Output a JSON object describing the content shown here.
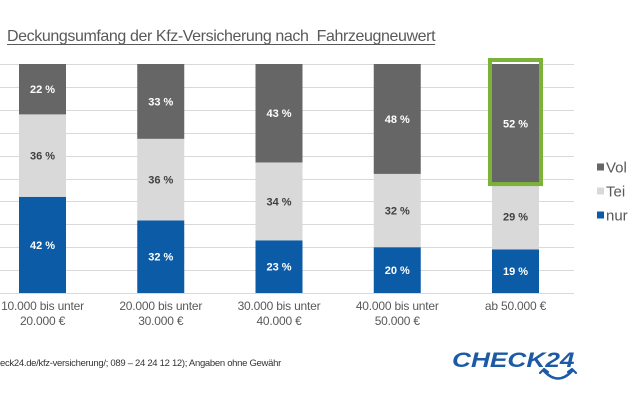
{
  "chart_data": {
    "type": "bar",
    "stacked": true,
    "normalized_percent": true,
    "title": "Deckungsumfang der Kfz-Versicherung nach  Fahrzeugneuwert",
    "xlabel": "",
    "ylabel": "",
    "ylim": [
      0,
      100
    ],
    "grid": true,
    "grid_step": 10,
    "legend_position": "right",
    "categories": [
      [
        "10.000 bis unter",
        "20.000 €"
      ],
      [
        "20.000 bis unter",
        "30.000 €"
      ],
      [
        "30.000 bis unter",
        "40.000 €"
      ],
      [
        "40.000 bis unter",
        "50.000 €"
      ],
      [
        "ab 50.000 €"
      ]
    ],
    "series": [
      {
        "name": "nur",
        "color": "#0b5ba7",
        "label_color": "#ffffff",
        "values": [
          42,
          32,
          23,
          20,
          19
        ]
      },
      {
        "name": "Tei",
        "color": "#d9d9d9",
        "label_color": "#404040",
        "values": [
          36,
          36,
          34,
          32,
          29
        ]
      },
      {
        "name": "Vol",
        "color": "#666666",
        "label_color": "#ffffff",
        "values": [
          22,
          33,
          43,
          48,
          52
        ]
      }
    ],
    "legend": [
      "Vol",
      "Tei",
      "nur"
    ],
    "label_suffix": " %",
    "highlight": {
      "category_index": 4,
      "series": "Vol",
      "color": "#7db238"
    }
  },
  "footer": {
    "source_text": "eck24.de/kfz-versicherung/; 089 – 24 24 12 12); Angaben ohne Gewähr"
  },
  "logo": {
    "text": "CHECK24",
    "color": "#1d5aa5"
  }
}
